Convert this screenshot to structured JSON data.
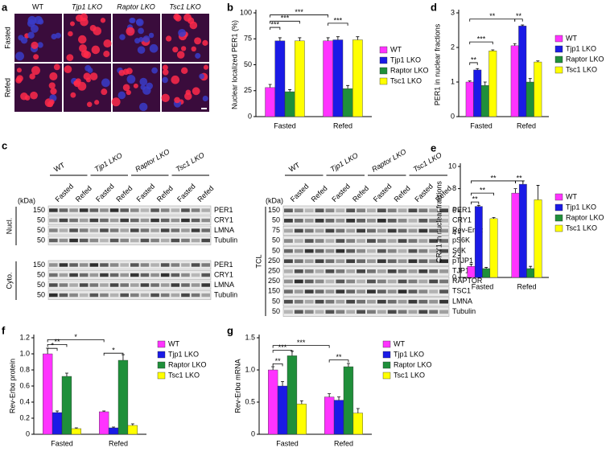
{
  "panel_letters": [
    "a",
    "b",
    "c",
    "d",
    "e",
    "f",
    "g"
  ],
  "micrographs": {
    "columns": [
      "WT",
      "Tjp1 LKO",
      "Raptor LKO",
      "Tsc1 LKO"
    ],
    "rows": [
      "Fasted",
      "Refed"
    ]
  },
  "blots": {
    "kda": "(kDa)",
    "genotypes": [
      "WT",
      "Tjp1 LKO",
      "Raptor LKO",
      "Tsc1 LKO"
    ],
    "lanes": [
      "Fasted",
      "Refed"
    ],
    "left": [
      {
        "name": "Nucl.",
        "bands": [
          {
            "marker": "150",
            "label": "PER1"
          },
          {
            "marker": "50",
            "label": "CRY1"
          },
          {
            "marker": "50",
            "label": "LMNA"
          },
          {
            "marker": "50",
            "label": "Tubulin"
          }
        ]
      },
      {
        "name": "Cyto.",
        "bands": [
          {
            "marker": "150",
            "label": "PER1"
          },
          {
            "marker": "50",
            "label": "CRY1"
          },
          {
            "marker": "50",
            "label": "LMNA"
          },
          {
            "marker": "50",
            "label": "Tubulin"
          }
        ]
      }
    ],
    "right": {
      "name": "TCL",
      "bands": [
        {
          "marker": "150",
          "label": "PER1"
        },
        {
          "marker": "50",
          "label": "CRY1"
        },
        {
          "marker": "75",
          "label": "Rev-Erbα"
        },
        {
          "marker": "50",
          "label": "pS6K"
        },
        {
          "marker": "50",
          "label": "S6K"
        },
        {
          "marker": "250",
          "label": "pTJP1"
        },
        {
          "marker": "250",
          "label": "TJP1"
        },
        {
          "marker": "250",
          "label": "RAPTOR"
        },
        {
          "marker": "150",
          "label": "TSC1"
        },
        {
          "marker": "50",
          "label": "LMNA"
        },
        {
          "marker": "50",
          "label": "Tubulin"
        }
      ]
    }
  },
  "chart_data": [
    {
      "type": "bar",
      "ylabel": "Nuclear localized PER1 (%)",
      "categories": [
        "Fasted",
        "Refed"
      ],
      "ylim": [
        0,
        100
      ],
      "yticks": [
        0,
        25,
        50,
        75,
        100
      ],
      "legend": "right",
      "series": [
        {
          "name": "WT",
          "color": "#ff33ff",
          "values": [
            28,
            73
          ],
          "errors": [
            3,
            3
          ]
        },
        {
          "name": "Tjp1 LKO",
          "color": "#1a1ae6",
          "values": [
            73,
            74
          ],
          "errors": [
            3,
            3
          ]
        },
        {
          "name": "Raptor LKO",
          "color": "#1f8f3a",
          "values": [
            24,
            27
          ],
          "errors": [
            2,
            3
          ]
        },
        {
          "name": "Tsc1 LKO",
          "color": "#ffff00",
          "values": [
            73,
            74
          ],
          "errors": [
            3,
            3
          ]
        }
      ],
      "annotations": [
        "***",
        "***",
        "***",
        "***"
      ]
    },
    {
      "type": "bar",
      "ylabel": "PER1 in nuclear fractions",
      "categories": [
        "Fasted",
        "Refed"
      ],
      "ylim": [
        0,
        3
      ],
      "yticks": [
        0,
        1,
        2,
        3
      ],
      "legend": "right",
      "series": [
        {
          "name": "WT",
          "color": "#ff33ff",
          "values": [
            1.0,
            2.05
          ],
          "errors": [
            0.03,
            0.06
          ]
        },
        {
          "name": "Tjp1 LKO",
          "color": "#1a1ae6",
          "values": [
            1.35,
            2.62
          ],
          "errors": [
            0.04,
            0.03
          ]
        },
        {
          "name": "Raptor LKO",
          "color": "#1f8f3a",
          "values": [
            0.9,
            1.0
          ],
          "errors": [
            0.1,
            0.1
          ]
        },
        {
          "name": "Tsc1 LKO",
          "color": "#ffff00",
          "values": [
            1.9,
            1.58
          ],
          "errors": [
            0.03,
            0.03
          ]
        }
      ],
      "annotations": [
        "**",
        "***",
        "**",
        "**"
      ]
    },
    {
      "type": "bar",
      "ylabel": "CRY1 in nuclear fractions",
      "categories": [
        "Fasted",
        "Refed"
      ],
      "ylim": [
        0,
        10
      ],
      "yticks": [
        0,
        2,
        4,
        6,
        8,
        10
      ],
      "legend": "right",
      "series": [
        {
          "name": "WT",
          "color": "#ff33ff",
          "values": [
            1.0,
            7.6
          ],
          "errors": [
            0.2,
            0.4
          ]
        },
        {
          "name": "Tjp1 LKO",
          "color": "#1a1ae6",
          "values": [
            6.4,
            8.4
          ],
          "errors": [
            0.1,
            0.3
          ]
        },
        {
          "name": "Raptor LKO",
          "color": "#1f8f3a",
          "values": [
            0.8,
            0.8
          ],
          "errors": [
            0.1,
            0.2
          ]
        },
        {
          "name": "Tsc1 LKO",
          "color": "#ffff00",
          "values": [
            5.3,
            7.0
          ],
          "errors": [
            0.1,
            1.3
          ]
        }
      ],
      "annotations": [
        "**",
        "**",
        "**",
        "**"
      ]
    },
    {
      "type": "bar",
      "ylabel": "Rev-Erbα protein",
      "categories": [
        "Fasted",
        "Refed"
      ],
      "ylim": [
        0,
        1.2
      ],
      "yticks": [
        0,
        0.2,
        0.4,
        0.6,
        0.8,
        {
          "value": 1,
          "label": "1.0"
        },
        1.2
      ],
      "legend": "right",
      "series": [
        {
          "name": "WT",
          "color": "#ff33ff",
          "values": [
            1.0,
            0.28
          ],
          "errors": [
            0.07,
            0.01
          ]
        },
        {
          "name": "Tjp1 LKO",
          "color": "#1a1ae6",
          "values": [
            0.27,
            0.08
          ],
          "errors": [
            0.02,
            0.01
          ]
        },
        {
          "name": "Raptor LKO",
          "color": "#1f8f3a",
          "values": [
            0.72,
            0.92
          ],
          "errors": [
            0.04,
            0.07
          ]
        },
        {
          "name": "Tsc1 LKO",
          "color": "#ffff00",
          "values": [
            0.07,
            0.11
          ],
          "errors": [
            0.01,
            0.02
          ]
        }
      ],
      "annotations": [
        "*",
        "**",
        "*",
        "*"
      ]
    },
    {
      "type": "bar",
      "ylabel": "Rev-Erbα mRNA",
      "categories": [
        "Fasted",
        "Refed"
      ],
      "ylim": [
        0,
        1.5
      ],
      "yticks": [
        0,
        0.5,
        {
          "value": 1,
          "label": "1.0"
        },
        1.5
      ],
      "legend": "right",
      "series": [
        {
          "name": "WT",
          "color": "#ff33ff",
          "values": [
            1.0,
            0.58
          ],
          "errors": [
            0.05,
            0.05
          ]
        },
        {
          "name": "Tjp1 LKO",
          "color": "#1a1ae6",
          "values": [
            0.75,
            0.53
          ],
          "errors": [
            0.07,
            0.05
          ]
        },
        {
          "name": "Raptor LKO",
          "color": "#1f8f3a",
          "values": [
            1.22,
            1.05
          ],
          "errors": [
            0.07,
            0.05
          ]
        },
        {
          "name": "Tsc1 LKO",
          "color": "#ffff00",
          "values": [
            0.47,
            0.33
          ],
          "errors": [
            0.05,
            0.07
          ]
        }
      ],
      "annotations": [
        "**",
        "***",
        "***",
        "**"
      ]
    }
  ]
}
